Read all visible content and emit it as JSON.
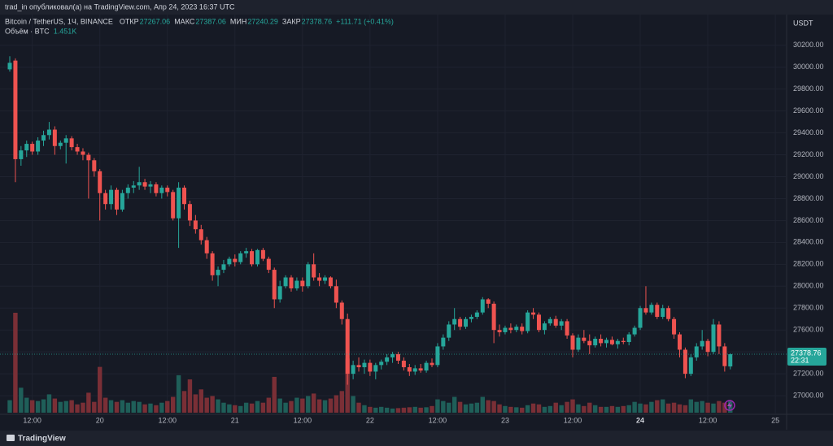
{
  "header": {
    "publisher": "trad_in опубликовал(а) на TradingView.com, Апр 24, 2023 16:37 UTC",
    "brand": "TradingView"
  },
  "chart_data": {
    "type": "candlestick",
    "title": "Bitcoin / TetherUS, 1Ч, BINANCE",
    "ohlc_labels": [
      "ОТКР",
      "МАКС",
      "МИН",
      "ЗАКР"
    ],
    "change": "+111.71 (+0.41%)",
    "currency": "USDT",
    "countdown": "22:31",
    "up_color": "#26a69a",
    "down_color": "#ef5350",
    "categories": [
      null,
      null,
      null,
      null,
      "12:00",
      null,
      null,
      null,
      null,
      null,
      null,
      null,
      null,
      null,
      null,
      null,
      "20",
      null,
      null,
      null,
      null,
      null,
      null,
      null,
      null,
      null,
      null,
      null,
      "12:00",
      null,
      null,
      null,
      null,
      null,
      null,
      null,
      null,
      null,
      null,
      null,
      "21",
      null,
      null,
      null,
      null,
      null,
      null,
      null,
      null,
      null,
      null,
      null,
      "12:00",
      null,
      null,
      null,
      null,
      null,
      null,
      null,
      null,
      null,
      null,
      null,
      "22",
      null,
      null,
      null,
      null,
      null,
      null,
      null,
      null,
      null,
      null,
      null,
      "12:00",
      null,
      null,
      null,
      null,
      null,
      null,
      null,
      null,
      null,
      null,
      null,
      "23",
      null,
      null,
      null,
      null,
      null,
      null,
      null,
      null,
      null,
      null,
      null,
      "12:00",
      null,
      null,
      null,
      null,
      null,
      null,
      null,
      null,
      null,
      null,
      null,
      "24",
      null,
      null,
      null,
      null,
      null,
      null,
      null,
      null,
      null,
      null,
      null,
      "12:00",
      null,
      null,
      null,
      null,
      null,
      null,
      null,
      null,
      null,
      null,
      null,
      "25"
    ],
    "ohlc": [
      [
        29980,
        30100,
        29960,
        30040
      ],
      [
        30060,
        30080,
        28950,
        29160
      ],
      [
        29160,
        29280,
        29100,
        29240
      ],
      [
        29240,
        29330,
        29180,
        29300
      ],
      [
        29300,
        29320,
        29200,
        29230
      ],
      [
        29230,
        29360,
        29200,
        29330
      ],
      [
        29330,
        29420,
        29280,
        29380
      ],
      [
        29380,
        29500,
        29340,
        29430
      ],
      [
        29430,
        29460,
        29200,
        29280
      ],
      [
        29280,
        29330,
        29250,
        29310
      ],
      [
        29310,
        29380,
        29120,
        29350
      ],
      [
        29350,
        29370,
        29240,
        29270
      ],
      [
        29270,
        29300,
        29200,
        29230
      ],
      [
        29230,
        29260,
        29150,
        29200
      ],
      [
        29200,
        29220,
        28800,
        29150
      ],
      [
        29150,
        29170,
        29000,
        29050
      ],
      [
        29050,
        29070,
        28600,
        28850
      ],
      [
        28850,
        28880,
        28700,
        28750
      ],
      [
        28750,
        28920,
        28700,
        28880
      ],
      [
        28880,
        28900,
        28650,
        28700
      ],
      [
        28700,
        28880,
        28680,
        28850
      ],
      [
        28850,
        28930,
        28800,
        28900
      ],
      [
        28900,
        28960,
        28850,
        28920
      ],
      [
        28920,
        29090,
        28880,
        28950
      ],
      [
        28950,
        28980,
        28880,
        28910
      ],
      [
        28910,
        28960,
        28850,
        28930
      ],
      [
        28930,
        28950,
        28820,
        28850
      ],
      [
        28850,
        28920,
        28800,
        28900
      ],
      [
        28900,
        28920,
        28820,
        28860
      ],
      [
        28860,
        28880,
        28600,
        28620
      ],
      [
        28620,
        28950,
        28350,
        28900
      ],
      [
        28900,
        28920,
        28700,
        28750
      ],
      [
        28750,
        28780,
        28550,
        28600
      ],
      [
        28600,
        28650,
        28480,
        28520
      ],
      [
        28520,
        28560,
        28380,
        28420
      ],
      [
        28420,
        28450,
        28250,
        28300
      ],
      [
        28300,
        28320,
        28050,
        28100
      ],
      [
        28100,
        28180,
        28000,
        28150
      ],
      [
        28150,
        28240,
        28120,
        28200
      ],
      [
        28200,
        28270,
        28180,
        28250
      ],
      [
        28250,
        28290,
        28180,
        28220
      ],
      [
        28220,
        28320,
        28200,
        28300
      ],
      [
        28300,
        28350,
        28260,
        28320
      ],
      [
        28320,
        28340,
        28180,
        28200
      ],
      [
        28200,
        28340,
        28180,
        28330
      ],
      [
        28330,
        28350,
        28230,
        28250
      ],
      [
        28250,
        28270,
        28120,
        28150
      ],
      [
        28150,
        28170,
        27800,
        27880
      ],
      [
        27880,
        28050,
        27850,
        28000
      ],
      [
        28000,
        28100,
        27980,
        28080
      ],
      [
        28080,
        28100,
        27950,
        27980
      ],
      [
        27980,
        28080,
        27960,
        28050
      ],
      [
        28050,
        28080,
        27950,
        28000
      ],
      [
        28000,
        28220,
        27980,
        28200
      ],
      [
        28200,
        28300,
        28050,
        28080
      ],
      [
        28080,
        28120,
        28000,
        28050
      ],
      [
        28050,
        28100,
        28020,
        28080
      ],
      [
        28080,
        28090,
        27980,
        28000
      ],
      [
        28000,
        28060,
        27800,
        27850
      ],
      [
        27850,
        27870,
        27650,
        27700
      ],
      [
        27700,
        27750,
        27100,
        27200
      ],
      [
        27200,
        27320,
        27150,
        27280
      ],
      [
        27280,
        27350,
        27220,
        27260
      ],
      [
        27260,
        27330,
        27200,
        27300
      ],
      [
        27300,
        27330,
        27180,
        27220
      ],
      [
        27220,
        27300,
        27150,
        27280
      ],
      [
        27280,
        27330,
        27240,
        27310
      ],
      [
        27310,
        27380,
        27280,
        27350
      ],
      [
        27350,
        27400,
        27300,
        27380
      ],
      [
        27380,
        27400,
        27290,
        27320
      ],
      [
        27320,
        27350,
        27230,
        27260
      ],
      [
        27260,
        27290,
        27180,
        27220
      ],
      [
        27220,
        27280,
        27190,
        27250
      ],
      [
        27250,
        27290,
        27210,
        27230
      ],
      [
        27230,
        27320,
        27210,
        27300
      ],
      [
        27300,
        27340,
        27260,
        27280
      ],
      [
        27280,
        27480,
        27260,
        27450
      ],
      [
        27450,
        27560,
        27420,
        27530
      ],
      [
        27530,
        27680,
        27500,
        27650
      ],
      [
        27650,
        27800,
        27600,
        27700
      ],
      [
        27700,
        27720,
        27600,
        27630
      ],
      [
        27630,
        27720,
        27610,
        27700
      ],
      [
        27700,
        27740,
        27670,
        27720
      ],
      [
        27720,
        27780,
        27700,
        27760
      ],
      [
        27760,
        27900,
        27740,
        27880
      ],
      [
        27880,
        27890,
        27800,
        27840
      ],
      [
        27840,
        27860,
        27480,
        27600
      ],
      [
        27600,
        27650,
        27540,
        27580
      ],
      [
        27580,
        27640,
        27560,
        27620
      ],
      [
        27620,
        27660,
        27570,
        27600
      ],
      [
        27600,
        27650,
        27580,
        27630
      ],
      [
        27630,
        27660,
        27560,
        27590
      ],
      [
        27590,
        27780,
        27570,
        27760
      ],
      [
        27760,
        27800,
        27700,
        27740
      ],
      [
        27740,
        27760,
        27580,
        27600
      ],
      [
        27600,
        27680,
        27560,
        27660
      ],
      [
        27660,
        27720,
        27640,
        27700
      ],
      [
        27700,
        27730,
        27620,
        27640
      ],
      [
        27640,
        27700,
        27600,
        27680
      ],
      [
        27680,
        27700,
        27520,
        27550
      ],
      [
        27550,
        27570,
        27350,
        27420
      ],
      [
        27420,
        27560,
        27400,
        27530
      ],
      [
        27530,
        27600,
        27480,
        27500
      ],
      [
        27500,
        27560,
        27380,
        27460
      ],
      [
        27460,
        27540,
        27440,
        27520
      ],
      [
        27520,
        27560,
        27450,
        27480
      ],
      [
        27480,
        27530,
        27440,
        27510
      ],
      [
        27510,
        27540,
        27460,
        27470
      ],
      [
        27470,
        27520,
        27430,
        27500
      ],
      [
        27500,
        27530,
        27470,
        27490
      ],
      [
        27490,
        27580,
        27460,
        27560
      ],
      [
        27560,
        27640,
        27540,
        27620
      ],
      [
        27620,
        27820,
        27600,
        27800
      ],
      [
        27800,
        28000,
        27740,
        27760
      ],
      [
        27760,
        27850,
        27740,
        27830
      ],
      [
        27830,
        27850,
        27700,
        27720
      ],
      [
        27720,
        27830,
        27700,
        27800
      ],
      [
        27800,
        27820,
        27680,
        27700
      ],
      [
        27700,
        27720,
        27520,
        27560
      ],
      [
        27560,
        27580,
        27350,
        27420
      ],
      [
        27420,
        27440,
        27160,
        27200
      ],
      [
        27200,
        27380,
        27180,
        27350
      ],
      [
        27350,
        27480,
        27320,
        27450
      ],
      [
        27450,
        27600,
        27420,
        27500
      ],
      [
        27500,
        27520,
        27360,
        27400
      ],
      [
        27400,
        27700,
        27380,
        27650
      ],
      [
        27650,
        27680,
        27380,
        27450
      ],
      [
        27450,
        27480,
        27220,
        27270
      ],
      [
        27267.06,
        27387.06,
        27240.29,
        27378.76
      ],
      null,
      null,
      null,
      null,
      null,
      null,
      null,
      null
    ],
    "volume": {
      "name": "Объём · BTC",
      "last_label": "1.451K",
      "values": [
        1500,
        12000,
        3000,
        1800,
        1500,
        1400,
        1600,
        2200,
        1700,
        1300,
        1400,
        1500,
        1000,
        1200,
        2400,
        1300,
        5500,
        1800,
        1500,
        1300,
        1500,
        1200,
        1400,
        1300,
        1000,
        1100,
        900,
        1200,
        1400,
        1900,
        4500,
        2600,
        4000,
        2200,
        2800,
        1800,
        2000,
        1600,
        1200,
        1000,
        900,
        800,
        1200,
        1100,
        1400,
        1200,
        1800,
        4300,
        1700,
        1200,
        1400,
        1800,
        1700,
        2000,
        2300,
        1600,
        1500,
        1700,
        2100,
        2600,
        6500,
        2000,
        1200,
        900,
        700,
        600,
        700,
        600,
        500,
        550,
        600,
        650,
        700,
        600,
        650,
        800,
        1600,
        1400,
        1200,
        1900,
        1300,
        1000,
        1100,
        1200,
        1900,
        1500,
        1400,
        1000,
        800,
        700,
        650,
        600,
        900,
        1100,
        1000,
        700,
        800,
        1200,
        900,
        1300,
        1600,
        1000,
        800,
        1200,
        900,
        700,
        700,
        800,
        700,
        800,
        900,
        1300,
        1100,
        1000,
        1300,
        1500,
        1600,
        1100,
        1200,
        1000,
        900,
        1600,
        1300,
        1400,
        1200,
        1100,
        1400,
        1200,
        1451,
        null,
        null,
        null,
        null,
        null,
        null,
        null,
        null
      ]
    },
    "ylim": [
      26830,
      30480
    ],
    "yticks": [
      {
        "value": 27000,
        "label": "27000.00"
      },
      {
        "value": 27200,
        "label": "27200.00"
      },
      {
        "value": 27400,
        "label": "27400.00"
      },
      {
        "value": 27600,
        "label": "27600.00"
      },
      {
        "value": 27800,
        "label": "27800.00"
      },
      {
        "value": 28000,
        "label": "28000.00"
      },
      {
        "value": 28200,
        "label": "28200.00"
      },
      {
        "value": 28400,
        "label": "28400.00"
      },
      {
        "value": 28600,
        "label": "28600.00"
      },
      {
        "value": 28800,
        "label": "28800.00"
      },
      {
        "value": 29000,
        "label": "29000.00"
      },
      {
        "value": 29200,
        "label": "29200.00"
      },
      {
        "value": 29400,
        "label": "29400.00"
      },
      {
        "value": 29600,
        "label": "29600.00"
      },
      {
        "value": 29800,
        "label": "29800.00"
      },
      {
        "value": 30000,
        "label": "30000.00"
      },
      {
        "value": 30200,
        "label": "30200.00"
      }
    ],
    "grid": true
  }
}
